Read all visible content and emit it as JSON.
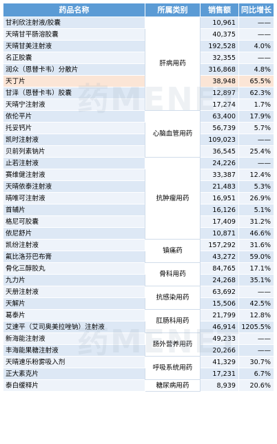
{
  "header": {
    "name": "药品名称",
    "category": "所属类别",
    "sales": "销售额",
    "growth": "同比增长"
  },
  "watermark": [
    "药MENET",
    "药MENET"
  ],
  "rows": [
    {
      "name": "甘利欣注射液/胶囊",
      "sales": "10,961",
      "growth": "——"
    },
    {
      "name": "天晴甘平肠溶胶囊",
      "sales": "40,375",
      "growth": "——"
    },
    {
      "name": "天晴甘美注射液",
      "sales": "192,528",
      "growth": "4.0%"
    },
    {
      "name": "名正胶囊",
      "sales": "32,355",
      "growth": "——"
    },
    {
      "name": "润众（恩替卡韦）分散片",
      "sales": "316,868",
      "growth": "4.8%"
    },
    {
      "name": "天丁片",
      "sales": "38,948",
      "growth": "65.5%"
    },
    {
      "name": "甘泽（恩替卡韦）胶囊",
      "sales": "12,897",
      "growth": "62.3%"
    },
    {
      "name": "天晴宁注射液",
      "sales": "17,274",
      "growth": "1.7%"
    },
    {
      "name": "依伦平片",
      "sales": "63,400",
      "growth": "17.9%"
    },
    {
      "name": "托妥钙片",
      "sales": "56,739",
      "growth": "5.7%"
    },
    {
      "name": "凯时注射液",
      "sales": "109,023",
      "growth": "——"
    },
    {
      "name": "贝前列素钠片",
      "sales": "36,545",
      "growth": "25.4%"
    },
    {
      "name": "止若注射液",
      "sales": "24,226",
      "growth": "——"
    },
    {
      "name": "赛维健注射液",
      "sales": "33,387",
      "growth": "12.4%"
    },
    {
      "name": "天晴依泰注射液",
      "sales": "21,483",
      "growth": "5.3%"
    },
    {
      "name": "晴唯可注射液",
      "sales": "16,951",
      "growth": "26.9%"
    },
    {
      "name": "首辅片",
      "sales": "16,126",
      "growth": "5.1%"
    },
    {
      "name": "格尼可胶囊",
      "sales": "17,409",
      "growth": "31.2%"
    },
    {
      "name": "依尼舒片",
      "sales": "10,871",
      "growth": "46.6%"
    },
    {
      "name": "凯纷注射液",
      "sales": "157,292",
      "growth": "31.6%"
    },
    {
      "name": "氟比洛芬巴布膏",
      "sales": "43,272",
      "growth": "59.0%"
    },
    {
      "name": "骨化三醇胶丸",
      "sales": "84,765",
      "growth": "17.1%"
    },
    {
      "name": "九力片",
      "sales": "24,268",
      "growth": "35.1%"
    },
    {
      "name": "天册注射液",
      "sales": "63,692",
      "growth": "——"
    },
    {
      "name": "天解片",
      "sales": "15,506",
      "growth": "42.5%"
    },
    {
      "name": "葛泰片",
      "sales": "21,799",
      "growth": "12.8%"
    },
    {
      "name": "艾速平（艾司奥美拉唑钠）注射液",
      "sales": "46,914",
      "growth": "1205.5%"
    },
    {
      "name": "新海能注射液",
      "sales": "49,233",
      "growth": "——"
    },
    {
      "name": "丰海能果糖注射液",
      "sales": "20,266",
      "growth": "——"
    },
    {
      "name": "天晴速乐粉雾吸入剂",
      "sales": "41,329",
      "growth": "30.7%"
    },
    {
      "name": "正大素克片",
      "sales": "17,231",
      "growth": "6.7%"
    },
    {
      "name": "泰白缓释片",
      "sales": "8,939",
      "growth": "20.6%"
    }
  ],
  "categories": [
    {
      "label": "肝病用药"
    },
    {
      "label": "心脑血管用药"
    },
    {
      "label": "抗肿瘤用药"
    },
    {
      "label": "镇痛药"
    },
    {
      "label": "骨科用药"
    },
    {
      "label": "抗感染用药"
    },
    {
      "label": "肛肠科用药"
    },
    {
      "label": "肠外营养用药"
    },
    {
      "label": "呼吸系统用药"
    },
    {
      "label": "糖尿病用药"
    }
  ]
}
